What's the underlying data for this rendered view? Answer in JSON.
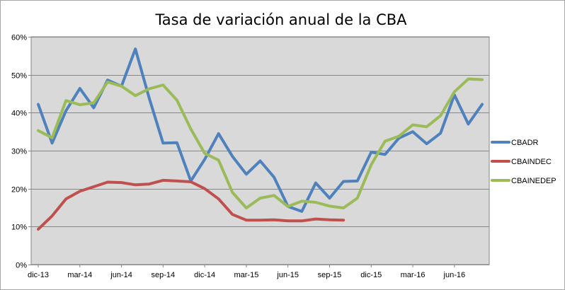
{
  "chart_data": {
    "type": "line",
    "title": "Tasa de variación anual de la CBA",
    "xlabel": "",
    "ylabel": "",
    "ylim": [
      0,
      60
    ],
    "y_ticks": [
      "0%",
      "10%",
      "20%",
      "30%",
      "40%",
      "50%",
      "60%"
    ],
    "x_tick_labels": [
      "dic-13",
      "mar-14",
      "jun-14",
      "sep-14",
      "dic-14",
      "mar-15",
      "jun-15",
      "sep-15",
      "dic-15",
      "mar-16",
      "jun-16"
    ],
    "x": [
      "dic-13",
      "ene-14",
      "feb-14",
      "mar-14",
      "abr-14",
      "may-14",
      "jun-14",
      "jul-14",
      "ago-14",
      "sep-14",
      "oct-14",
      "nov-14",
      "dic-14",
      "ene-15",
      "feb-15",
      "mar-15",
      "abr-15",
      "may-15",
      "jun-15",
      "jul-15",
      "ago-15",
      "sep-15",
      "oct-15",
      "nov-15",
      "dic-15",
      "ene-16",
      "feb-16",
      "mar-16",
      "abr-16",
      "may-16",
      "jun-16",
      "jul-16",
      "ago-16"
    ],
    "series": [
      {
        "name": "CBADR",
        "color": "#4f81bd",
        "values": [
          42.2,
          32.0,
          40.5,
          46.4,
          41.3,
          48.6,
          47.0,
          56.8,
          43.8,
          32.0,
          32.1,
          22.0,
          27.7,
          34.5,
          28.5,
          23.8,
          27.3,
          23.0,
          15.3,
          14.0,
          21.5,
          17.5,
          21.9,
          22.0,
          29.6,
          29.0,
          33.3,
          35.0,
          31.8,
          34.6,
          44.7,
          37.0,
          42.2
        ]
      },
      {
        "name": "CBAINDEC",
        "color": "#c0504d",
        "values": [
          9.3,
          12.8,
          17.3,
          19.3,
          20.5,
          21.7,
          21.6,
          21.0,
          21.2,
          22.2,
          22.0,
          21.8,
          20.0,
          17.3,
          13.2,
          11.7,
          11.7,
          11.8,
          11.5,
          11.5,
          12.0,
          11.8,
          11.7,
          null,
          null,
          null,
          null,
          null,
          null,
          null,
          null,
          null,
          null
        ]
      },
      {
        "name": "CBAINEDEP",
        "color": "#9bbb59",
        "values": [
          35.3,
          33.4,
          43.2,
          42.1,
          42.6,
          48.1,
          47.0,
          44.5,
          46.3,
          47.3,
          43.3,
          35.7,
          29.3,
          27.5,
          19.0,
          14.9,
          17.5,
          18.2,
          15.3,
          16.7,
          16.4,
          15.4,
          14.9,
          17.5,
          26.3,
          32.5,
          33.8,
          36.8,
          36.3,
          39.2,
          45.5,
          48.9,
          48.7
        ]
      }
    ],
    "grid": true,
    "legend_position": "right",
    "plot_background": "#d9d9d9"
  }
}
